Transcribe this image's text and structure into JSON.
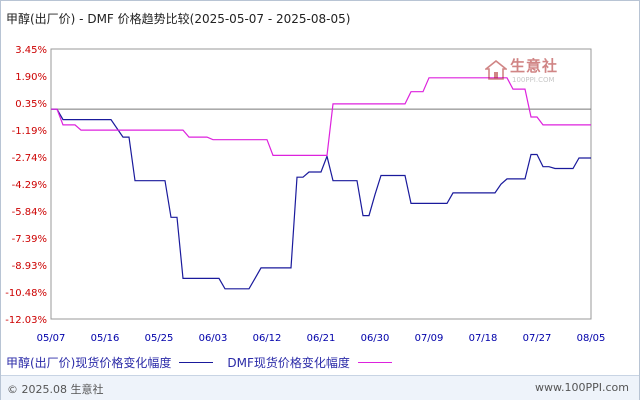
{
  "title": "甲醇(出厂价) - DMF 价格趋势比较(2025-05-07 - 2025-08-05)",
  "watermark": {
    "text": "生意社",
    "sub": "100PPI.COM"
  },
  "footer": {
    "copyright": "© 2025.08 生意社",
    "website": "www.100PPI.com"
  },
  "chart_data": {
    "type": "line",
    "y_tick_labels": [
      "3.45%",
      "1.90%",
      "0.35%",
      "-1.19%",
      "-2.74%",
      "-4.29%",
      "-5.84%",
      "-7.39%",
      "-8.93%",
      "-10.48%",
      "-12.03%"
    ],
    "y_ticks": [
      3.45,
      1.9,
      0.35,
      -1.19,
      -2.74,
      -4.29,
      -5.84,
      -7.39,
      -8.93,
      -10.48,
      -12.03
    ],
    "ylim": [
      -12.03,
      3.45
    ],
    "zero_line": 0,
    "x_tick_labels": [
      "05/07",
      "05/16",
      "05/25",
      "06/03",
      "06/12",
      "06/21",
      "06/30",
      "07/09",
      "07/18",
      "07/27",
      "08/05"
    ],
    "x_ticks": [
      0,
      9,
      18,
      27,
      36,
      45,
      54,
      63,
      72,
      81,
      90
    ],
    "xlim": [
      0,
      90
    ],
    "grid": true,
    "legend_position": "bottom-left",
    "series": [
      {
        "name": "甲醇(出厂价)现货价格变化幅度",
        "color": "#1a1a9c",
        "points": [
          [
            0,
            0
          ],
          [
            1,
            0
          ],
          [
            2,
            -0.6
          ],
          [
            3,
            -0.6
          ],
          [
            4,
            -0.6
          ],
          [
            10,
            -0.6
          ],
          [
            11,
            -1.1
          ],
          [
            12,
            -1.6
          ],
          [
            13,
            -1.6
          ],
          [
            14,
            -4.1
          ],
          [
            15,
            -4.1
          ],
          [
            19,
            -4.1
          ],
          [
            20,
            -6.2
          ],
          [
            21,
            -6.2
          ],
          [
            22,
            -9.7
          ],
          [
            23,
            -9.7
          ],
          [
            28,
            -9.7
          ],
          [
            29,
            -10.3
          ],
          [
            32,
            -10.3
          ],
          [
            33,
            -10.3
          ],
          [
            34,
            -9.7
          ],
          [
            35,
            -9.1
          ],
          [
            36,
            -9.1
          ],
          [
            40,
            -9.1
          ],
          [
            41,
            -3.9
          ],
          [
            42,
            -3.9
          ],
          [
            43,
            -3.6
          ],
          [
            44,
            -3.6
          ],
          [
            45,
            -3.6
          ],
          [
            46,
            -2.7
          ],
          [
            47,
            -4.1
          ],
          [
            48,
            -4.1
          ],
          [
            50,
            -4.1
          ],
          [
            51,
            -4.1
          ],
          [
            52,
            -6.1
          ],
          [
            53,
            -6.1
          ],
          [
            54,
            -4.9
          ],
          [
            55,
            -3.8
          ],
          [
            56,
            -3.8
          ],
          [
            58,
            -3.8
          ],
          [
            59,
            -3.8
          ],
          [
            60,
            -5.4
          ],
          [
            61,
            -5.4
          ],
          [
            63,
            -5.4
          ],
          [
            64,
            -5.4
          ],
          [
            65,
            -5.4
          ],
          [
            66,
            -5.4
          ],
          [
            67,
            -4.8
          ],
          [
            68,
            -4.8
          ],
          [
            74,
            -4.8
          ],
          [
            75,
            -4.3
          ],
          [
            76,
            -4.0
          ],
          [
            77,
            -4.0
          ],
          [
            79,
            -4.0
          ],
          [
            80,
            -2.6
          ],
          [
            81,
            -2.6
          ],
          [
            82,
            -3.3
          ],
          [
            83,
            -3.3
          ],
          [
            84,
            -3.4
          ],
          [
            85,
            -3.4
          ],
          [
            86,
            -3.4
          ],
          [
            87,
            -3.4
          ],
          [
            88,
            -2.8
          ],
          [
            89,
            -2.8
          ],
          [
            90,
            -2.8
          ]
        ]
      },
      {
        "name": "DMF现货价格变化幅度",
        "color": "#dd22dd",
        "points": [
          [
            0,
            0
          ],
          [
            1,
            0
          ],
          [
            2,
            -0.9
          ],
          [
            3,
            -0.9
          ],
          [
            4,
            -0.9
          ],
          [
            5,
            -1.2
          ],
          [
            6,
            -1.2
          ],
          [
            22,
            -1.2
          ],
          [
            23,
            -1.6
          ],
          [
            24,
            -1.6
          ],
          [
            26,
            -1.6
          ],
          [
            27,
            -1.75
          ],
          [
            28,
            -1.75
          ],
          [
            36,
            -1.75
          ],
          [
            37,
            -2.65
          ],
          [
            38,
            -2.65
          ],
          [
            45,
            -2.65
          ],
          [
            46,
            -2.65
          ],
          [
            47,
            0.3
          ],
          [
            48,
            0.3
          ],
          [
            59,
            0.3
          ],
          [
            60,
            1.0
          ],
          [
            61,
            1.0
          ],
          [
            62,
            1.0
          ],
          [
            63,
            1.8
          ],
          [
            64,
            1.8
          ],
          [
            76,
            1.8
          ],
          [
            77,
            1.15
          ],
          [
            78,
            1.15
          ],
          [
            79,
            1.15
          ],
          [
            80,
            -0.45
          ],
          [
            81,
            -0.45
          ],
          [
            82,
            -0.9
          ],
          [
            83,
            -0.9
          ],
          [
            90,
            -0.9
          ]
        ]
      }
    ]
  }
}
